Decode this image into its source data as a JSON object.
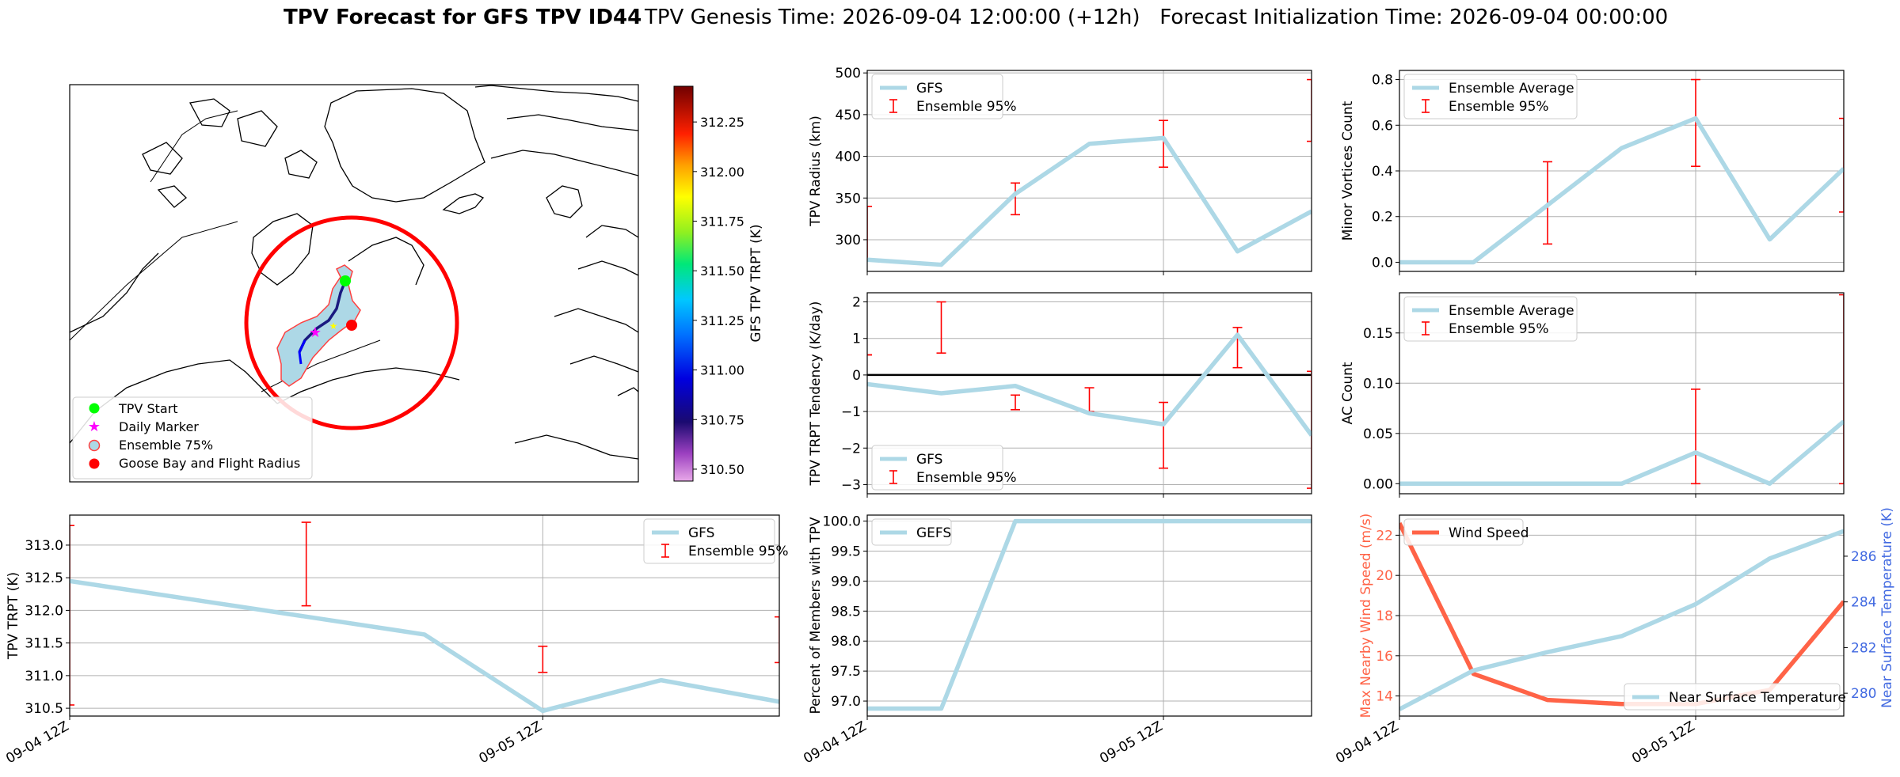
{
  "title": {
    "bold": "TPV Forecast for GFS TPV ID44",
    "rest": "TPV Genesis Time: 2026-09-04 12:00:00 (+12h)   Forecast Initialization Time: 2026-09-04 00:00:00"
  },
  "colors": {
    "lightblue": "#add8e6",
    "error": "#ff0000",
    "tomato": "#ff6347",
    "royalblue": "#4169e1",
    "start": "#00ff00",
    "marker": "#ff00ff",
    "goose": "#ff0000"
  },
  "map": {
    "legend": [
      "TPV Start",
      "Daily Marker",
      "Ensemble 75%",
      "Goose Bay and Flight Radius"
    ],
    "colorbar_label": "GFS TPV TRPT (K)",
    "colorbar_ticks": [
      "312.25",
      "312.00",
      "311.75",
      "311.50",
      "311.25",
      "311.00",
      "310.75",
      "310.50"
    ],
    "colorbar_range": [
      310.44,
      312.43
    ]
  },
  "chart_data": [
    {
      "id": "radius",
      "type": "line",
      "ylabel": "TPV Radius (km)",
      "ylim": [
        262,
        503
      ],
      "x": [
        "2026-09-04 12Z",
        "2026-09-04 18Z",
        "2026-09-05 00Z",
        "2026-09-05 06Z",
        "2026-09-05 12Z",
        "2026-09-05 18Z",
        "2026-09-06 00Z"
      ],
      "yticks": [
        "500",
        "450",
        "400",
        "350",
        "300"
      ],
      "yticks_values": [
        500,
        450,
        400,
        350,
        300
      ],
      "series": [
        {
          "name": "GFS",
          "values": [
            276,
            270,
            355,
            415,
            422,
            286,
            334
          ]
        }
      ],
      "ensemble_95": [
        [
          275,
          340
        ],
        null,
        [
          330,
          368
        ],
        null,
        [
          387,
          443
        ],
        null,
        [
          418,
          492
        ]
      ],
      "legend": [
        "GFS",
        "Ensemble 95%"
      ],
      "legend_position": "top-left"
    },
    {
      "id": "minor",
      "type": "line",
      "ylabel": "Minor Vortices Count",
      "ylim": [
        -0.04,
        0.84
      ],
      "x": [
        "2026-09-04 12Z",
        "2026-09-04 18Z",
        "2026-09-05 00Z",
        "2026-09-05 06Z",
        "2026-09-05 12Z",
        "2026-09-05 18Z",
        "2026-09-06 00Z"
      ],
      "yticks": [
        "0.8",
        "0.6",
        "0.4",
        "0.2",
        "0.0"
      ],
      "yticks_values": [
        0.8,
        0.6,
        0.4,
        0.2,
        0.0
      ],
      "series": [
        {
          "name": "Ensemble Average",
          "values": [
            0,
            0,
            0.25,
            0.5,
            0.63,
            0.1,
            0.41
          ]
        }
      ],
      "ensemble_95": [
        [
          0,
          0
        ],
        null,
        [
          0.08,
          0.44
        ],
        null,
        [
          0.42,
          0.8
        ],
        null,
        [
          0.22,
          0.63
        ]
      ],
      "legend": [
        "Ensemble Average",
        "Ensemble 95%"
      ],
      "legend_position": "top-left"
    },
    {
      "id": "tendency",
      "type": "line",
      "ylabel": "TPV TRPT Tendency (K/day)",
      "ylim": [
        -3.25,
        2.25
      ],
      "x": [
        "2026-09-04 12Z",
        "2026-09-04 18Z",
        "2026-09-05 00Z",
        "2026-09-05 06Z",
        "2026-09-05 12Z",
        "2026-09-05 18Z",
        "2026-09-06 00Z"
      ],
      "yticks": [
        "2",
        "1",
        "0",
        "−1",
        "−2",
        "−3"
      ],
      "yticks_values": [
        2,
        1,
        0,
        -1,
        -2,
        -3
      ],
      "series": [
        {
          "name": "GFS",
          "values": [
            -0.25,
            -0.5,
            -0.3,
            -1.05,
            -1.35,
            1.1,
            -1.65
          ]
        }
      ],
      "ensemble_95": [
        [
          0.55,
          0.55
        ],
        [
          0.6,
          2.0
        ],
        [
          -0.95,
          -0.55
        ],
        [
          -1.0,
          -0.35
        ],
        [
          -2.55,
          -0.75
        ],
        [
          0.2,
          1.3
        ],
        [
          -3.1,
          0.1
        ]
      ],
      "legend": [
        "GFS",
        "Ensemble 95%"
      ],
      "legend_position": "bottom-left"
    },
    {
      "id": "ac",
      "type": "line",
      "ylabel": "AC Count",
      "ylim": [
        -0.01,
        0.19
      ],
      "x": [
        "2026-09-04 12Z",
        "2026-09-04 18Z",
        "2026-09-05 00Z",
        "2026-09-05 06Z",
        "2026-09-05 12Z",
        "2026-09-05 18Z",
        "2026-09-06 00Z"
      ],
      "yticks": [
        "0.15",
        "0.10",
        "0.05",
        "0.00"
      ],
      "yticks_values": [
        0.15,
        0.1,
        0.05,
        0.0
      ],
      "series": [
        {
          "name": "Ensemble Average",
          "values": [
            0,
            0,
            0,
            0,
            0.031,
            0,
            0.062
          ]
        }
      ],
      "ensemble_95": [
        [
          0,
          0
        ],
        null,
        [
          0,
          0
        ],
        null,
        [
          0,
          0.094
        ],
        null,
        [
          0,
          0.188
        ]
      ],
      "legend": [
        "Ensemble Average",
        "Ensemble 95%"
      ],
      "legend_position": "top-left"
    },
    {
      "id": "trpt",
      "type": "line",
      "ylabel": "TPV TRPT (K)",
      "ylim": [
        310.38,
        313.46
      ],
      "x": [
        "2026-09-04 12Z",
        "2026-09-05 00Z",
        "2026-09-05 12Z",
        "2026-09-05 18Z",
        "2026-09-06 00Z"
      ],
      "x_positions_hours": [
        0,
        18,
        24,
        30,
        36
      ],
      "xticks": [
        "09-04 12Z",
        "09-05 12Z"
      ],
      "yticks": [
        "313.0",
        "312.5",
        "312.0",
        "311.5",
        "311.0",
        "310.5"
      ],
      "yticks_values": [
        313.0,
        312.5,
        312.0,
        311.5,
        311.0,
        310.5
      ],
      "series": [
        {
          "name": "GFS",
          "values": [
            312.45,
            311.63,
            310.46,
            310.93,
            310.6
          ]
        }
      ],
      "ensemble_95_points": [
        {
          "h": 0,
          "lo": 310.55,
          "hi": 313.3
        },
        {
          "h": 12,
          "lo": 312.07,
          "hi": 313.35
        },
        {
          "h": 24,
          "lo": 311.05,
          "hi": 311.45
        },
        {
          "h": 36,
          "lo": 311.2,
          "hi": 311.9
        }
      ],
      "legend": [
        "GFS",
        "Ensemble 95%"
      ],
      "legend_position": "top-right"
    },
    {
      "id": "percent",
      "type": "line",
      "ylabel": "Percent of Members with TPV",
      "ylim": [
        96.75,
        100.1
      ],
      "x": [
        "2026-09-04 12Z",
        "2026-09-04 18Z",
        "2026-09-05 00Z",
        "2026-09-05 06Z",
        "2026-09-05 12Z",
        "2026-09-05 18Z",
        "2026-09-06 00Z"
      ],
      "xticks": [
        "09-04 12Z",
        "09-05 12Z"
      ],
      "yticks": [
        "100.0",
        "99.5",
        "99.0",
        "98.5",
        "98.0",
        "97.5",
        "97.0"
      ],
      "yticks_values": [
        100,
        99.5,
        99,
        98.5,
        98,
        97.5,
        97
      ],
      "series": [
        {
          "name": "GEFS",
          "values": [
            96.875,
            96.875,
            100,
            100,
            100,
            100,
            100
          ]
        }
      ],
      "legend": [
        "GEFS"
      ],
      "legend_position": "top-left"
    },
    {
      "id": "wind",
      "type": "line",
      "ylabel": "Max Nearby Wind Speed (m/s)",
      "ylabel2": "Near Surface Temperature (K)",
      "ylim": [
        13,
        23
      ],
      "ylim2": [
        279.0,
        287.8
      ],
      "x": [
        "2026-09-04 12Z",
        "2026-09-04 18Z",
        "2026-09-05 00Z",
        "2026-09-05 06Z",
        "2026-09-05 12Z",
        "2026-09-05 18Z",
        "2026-09-06 00Z"
      ],
      "xticks": [
        "09-04 12Z",
        "09-05 12Z"
      ],
      "yticks": [
        "22",
        "20",
        "18",
        "16",
        "14"
      ],
      "yticks_values": [
        22,
        20,
        18,
        16,
        14
      ],
      "yticks2": [
        "286",
        "284",
        "282",
        "280"
      ],
      "yticks2_values": [
        286,
        284,
        282,
        280
      ],
      "series": [
        {
          "name": "Wind Speed",
          "axis": "left",
          "values": [
            22.6,
            15.1,
            13.8,
            13.6,
            13.6,
            14.3,
            18.7
          ]
        },
        {
          "name": "Near Surface Temperature",
          "axis": "right",
          "values": [
            279.3,
            281.0,
            281.8,
            282.5,
            283.9,
            285.9,
            287.1
          ]
        }
      ],
      "legend": [
        "Wind Speed",
        "Near Surface Temperature"
      ],
      "legend_position": "top-left / bottom-right"
    }
  ],
  "xticks": [
    "09-04 12Z",
    "09-05 12Z"
  ]
}
